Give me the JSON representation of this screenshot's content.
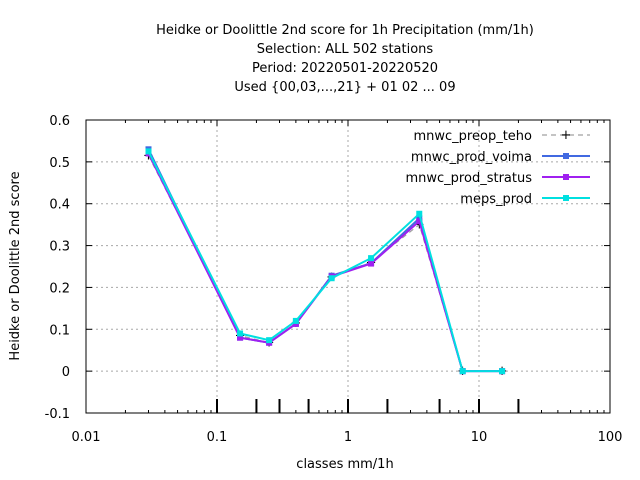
{
  "chart_data": {
    "type": "line",
    "title_lines": [
      "Heidke or Doolittle 2nd score  for 1h Precipitation (mm/1h)",
      "Selection: ALL    502 stations",
      "Period: 20220501-20220520",
      "Used {00,03,...,21} + 01 02 ... 09"
    ],
    "xlabel": "classes mm/1h",
    "ylabel": "Heidke or Doolittle 2nd score",
    "x_scale": "log",
    "xlim": [
      0.01,
      100
    ],
    "ylim": [
      -0.1,
      0.6
    ],
    "x_ticks": [
      0.01,
      0.1,
      1,
      10,
      100
    ],
    "x_tick_labels": [
      "0.01",
      "0.1",
      "1",
      "10",
      "100"
    ],
    "y_ticks": [
      -0.1,
      0,
      0.1,
      0.2,
      0.3,
      0.4,
      0.5,
      0.6
    ],
    "y_tick_labels": [
      "-0.1",
      "0",
      "0.1",
      "0.2",
      "0.3",
      "0.4",
      "0.5",
      "0.6"
    ],
    "grid": true,
    "legend_position": "top-right",
    "class_marks": [
      0.1,
      0.2,
      0.3,
      0.5,
      1,
      2,
      5,
      10,
      20
    ],
    "x": [
      0.03,
      0.15,
      0.25,
      0.4,
      0.75,
      1.5,
      3.5,
      7.5,
      15
    ],
    "series": [
      {
        "name": "mnwc_preop_teho",
        "color": "#a0a0a0",
        "dashed": true,
        "values": [
          0.515,
          0.085,
          0.068,
          0.115,
          0.225,
          0.26,
          0.35,
          0.0,
          0.0
        ]
      },
      {
        "name": "mnwc_prod_voima",
        "color": "#4169e1",
        "dashed": false,
        "values": [
          0.53,
          0.08,
          0.068,
          0.113,
          0.228,
          0.258,
          0.365,
          0.0,
          0.0
        ]
      },
      {
        "name": "mnwc_prod_stratus",
        "color": "#a020f0",
        "dashed": false,
        "values": [
          0.52,
          0.08,
          0.068,
          0.113,
          0.226,
          0.257,
          0.358,
          0.0,
          0.0
        ]
      },
      {
        "name": "meps_prod",
        "color": "#00e0e0",
        "dashed": false,
        "values": [
          0.525,
          0.09,
          0.074,
          0.12,
          0.222,
          0.27,
          0.376,
          0.0,
          0.0
        ]
      }
    ]
  }
}
